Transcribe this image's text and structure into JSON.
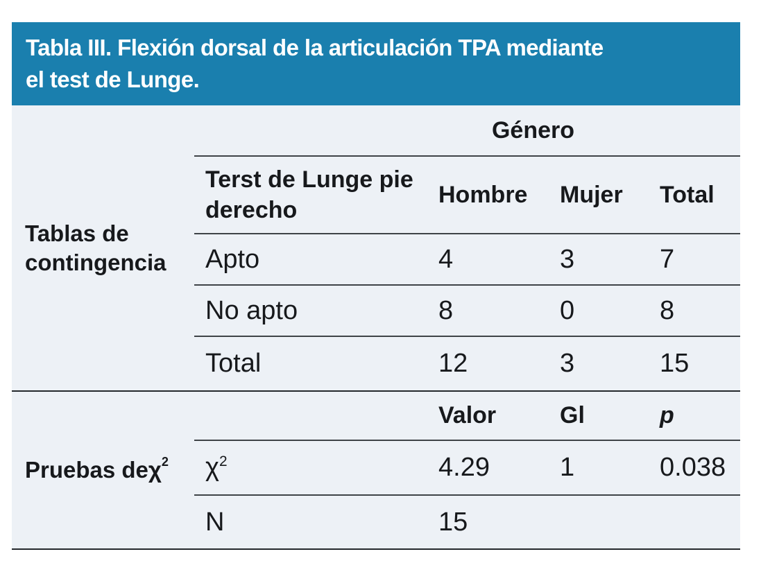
{
  "colors": {
    "title_bg": "#1a7fae",
    "title_text": "#ffffff",
    "body_bg": "#edf1f6",
    "text": "#17191c",
    "rule_strong": "#24282c",
    "rule_light": "#3e4347"
  },
  "title": {
    "line1": "Tabla III. Flexión dorsal de la articulación TPA mediante",
    "line2": "el test de Lunge."
  },
  "contingency": {
    "section_label": "Tablas de contingencia",
    "group_header": "Género",
    "row_header": "Terst de Lunge pie derecho",
    "col_hombre": "Hombre",
    "col_mujer": "Mujer",
    "col_total": "Total",
    "rows": [
      {
        "label": "Apto",
        "hombre": "4",
        "mujer": "3",
        "total": "7"
      },
      {
        "label": "No apto",
        "hombre": "8",
        "mujer": "0",
        "total": "8"
      },
      {
        "label": "Total",
        "hombre": "12",
        "mujer": "3",
        "total": "15"
      }
    ]
  },
  "chi": {
    "section_label_prefix": "Pruebas de ",
    "chi_symbol": "χ",
    "chi_sup": "2",
    "col_valor": "Valor",
    "col_gl": "Gl",
    "col_p": "p",
    "row_chi": {
      "valor": "4.29",
      "gl": "1",
      "p": "0.038"
    },
    "row_n": {
      "label": "N",
      "valor": "15",
      "gl": "",
      "p": ""
    }
  }
}
